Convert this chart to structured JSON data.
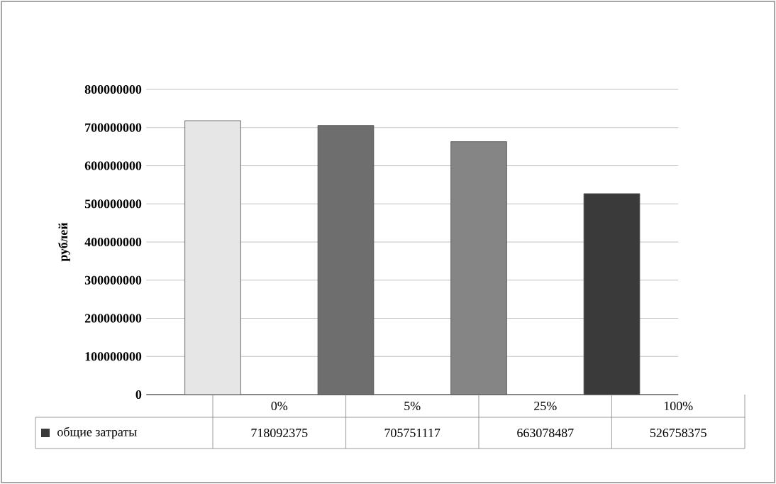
{
  "chart_data": {
    "type": "bar",
    "ylabel": "рублей",
    "categories": [
      "0%",
      "5%",
      "25%",
      "100%"
    ],
    "series": [
      {
        "name": "общие затраты",
        "colors": [
          "#e6e6e6",
          "#6e6e6e",
          "#858585",
          "#3a3a3a"
        ],
        "values": [
          718092375,
          705751117,
          663078487,
          526758375
        ]
      }
    ],
    "ylim": [
      0,
      800000000
    ],
    "yticks": [
      0,
      100000000,
      200000000,
      300000000,
      400000000,
      500000000,
      600000000,
      700000000,
      800000000
    ],
    "grid": "y",
    "data_labels": true,
    "legend": "bottom"
  }
}
